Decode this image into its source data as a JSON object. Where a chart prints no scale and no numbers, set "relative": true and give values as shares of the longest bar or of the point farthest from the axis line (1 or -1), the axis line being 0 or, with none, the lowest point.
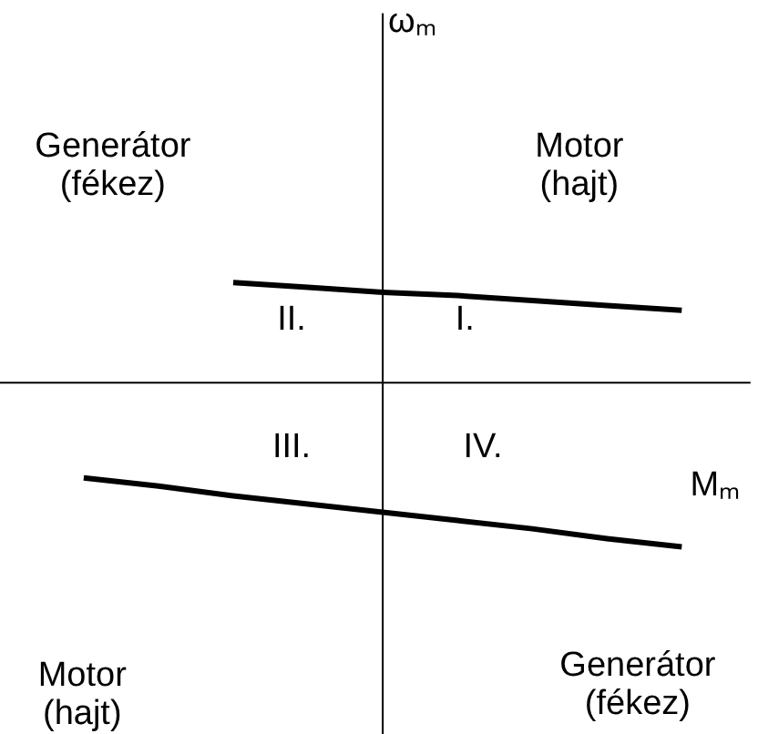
{
  "chart_data": {
    "type": "line",
    "relative": true,
    "xlabel": "Mₘ",
    "categories": [
      null,
      null,
      null,
      null,
      null,
      null,
      null,
      null,
      null,
      null,
      null
    ],
    "series": [
      {
        "color": "#000000",
        "values": [
          null,
          null,
          null,
          0.61,
          0.58,
          0.55,
          0.53,
          0.5,
          0.47,
          0.44,
          null
        ]
      },
      {
        "color": "#000000",
        "values": [
          null,
          -0.58,
          -0.63,
          -0.69,
          -0.74,
          -0.79,
          -0.84,
          -0.89,
          -0.95,
          -1,
          null
        ]
      }
    ],
    "annotations": [
      "ωₘ",
      "Generátor\n(fékez)",
      "Motor\n(hajt)",
      "II.",
      "I.",
      "III.",
      "IV.",
      "Motor\n(hajt)",
      "Generátor\n(fékez)"
    ],
    "grid": false,
    "marker": "none",
    "line_style": "solid"
  }
}
